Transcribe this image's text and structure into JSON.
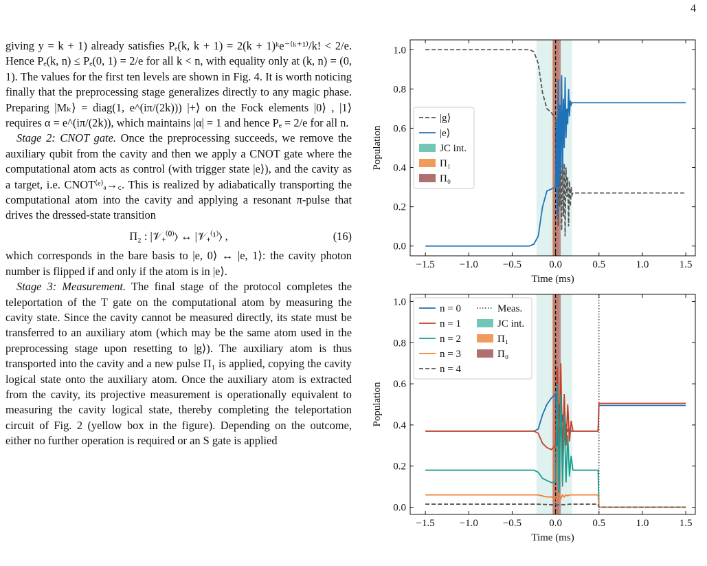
{
  "page_number": "4",
  "document": {
    "paragraphs": [
      {
        "body": "giving y = k + 1) already satisfies Pₑ(k, k + 1) = 2(k + 1)ᵏe⁻⁽ᵏ⁺¹⁾/k! < 2/e. Hence Pₑ(k, n) ≤ Pₑ(0, 1) = 2/e for all k < n, with equality only at (k, n) = (0, 1). The values for the first ten levels are shown in Fig. 4. It is worth noticing finally that the preprocessing stage generalizes directly to any magic phase. Preparing |Mₖ⟩ = diag(1, e^(iπ/(2k))) |+⟩ on the Fock elements |0⟩ , |1⟩ requires α = e^(iπ/(2k)), which maintains |α| = 1 and hence Pₑ = 2/e for all n."
      },
      {
        "lead": "Stage 2: CNOT gate.",
        "body": "Once the preprocessing succeeds, we remove the auxiliary qubit from the cavity and then we apply a CNOT gate where the computational atom acts as control (with trigger state |e⟩), and the cavity as a target, i.e. CNOT⁽ᵉ⁾ₐ→꜀. This is realized by adiabatically transporting the computational atom into the cavity and applying a resonant π-pulse that drives the dressed-state transition"
      }
    ],
    "equation": {
      "text": "Π₂ :    |𝒱₊⁽⁰⁾⟩ ↔ |𝒱₊⁽¹⁾⟩ ,",
      "number": "(16)"
    },
    "paragraphs_after": [
      {
        "body": "which corresponds in the bare basis to |e, 0⟩ ↔ |e, 1⟩: the cavity photon number is flipped if and only if the atom is in |e⟩."
      },
      {
        "lead": "Stage 3: Measurement.",
        "body": "The final stage of the protocol completes the teleportation of the T gate on the computational atom by measuring the cavity state. Since the cavity cannot be measured directly, its state must be transferred to an auxiliary atom (which may be the same atom used in the preprocessing stage upon resetting to |g⟩). The auxiliary atom is thus transported into the cavity and a new pulse Π₁ is applied, copying the cavity logical state onto the auxiliary atom. Once the auxiliary atom is extracted from the cavity, its projective measurement is operationally equivalent to measuring the cavity logical state, thereby completing the teleportation circuit of Fig. 2 (yellow box in the figure). Depending on the outcome, either no further operation is required or an S gate is applied"
      }
    ]
  },
  "chart_data": [
    {
      "type": "line",
      "xlabel": "Time (ms)",
      "ylabel": "Population",
      "xlim": [
        -1.675,
        1.61
      ],
      "ylim": [
        -0.05,
        1.05
      ],
      "xticks": [
        {
          "value": -1.5,
          "label": "−1.5"
        },
        {
          "value": -1.0,
          "label": "−1.0"
        },
        {
          "value": -0.5,
          "label": "−0.5"
        },
        {
          "value": 0,
          "label": "0.0"
        },
        0.5,
        {
          "value": 1.0,
          "label": "1.0"
        },
        1.5
      ],
      "yticks": [
        {
          "value": 0,
          "label": "0.0"
        },
        0.2,
        0.4,
        0.6,
        0.8,
        {
          "value": 1.0,
          "label": "1.0"
        }
      ],
      "legend": "center left",
      "legend_rows": 5,
      "x": [
        -1.5,
        -1.0,
        -0.5,
        -0.3,
        -0.25,
        -0.2,
        -0.15,
        -0.1,
        -0.05,
        0,
        0.01,
        0.02,
        0.03,
        0.04,
        0.05,
        0.06,
        0.07,
        0.08,
        0.09,
        0.1,
        0.11,
        0.12,
        0.13,
        0.14,
        0.15,
        0.16,
        0.17,
        0.18,
        0.19,
        0.2,
        0.25,
        1.0,
        1.5
      ],
      "series": [
        {
          "name": "|g⟩",
          "color": "#555555",
          "dash": true,
          "values": [
            1,
            1,
            1,
            1,
            0.99,
            0.93,
            0.78,
            0.7,
            0.68,
            0.65,
            0.3,
            0.6,
            0.1,
            0.55,
            0.2,
            0.45,
            0.08,
            0.5,
            0.15,
            0.42,
            0.05,
            0.4,
            0.25,
            0.35,
            0.1,
            0.33,
            0.2,
            0.3,
            0.26,
            0.27,
            0.27,
            0.27,
            0.27
          ]
        },
        {
          "name": "|e⟩",
          "color": "#1f72b8",
          "dash": false,
          "values": [
            0,
            0,
            0,
            0,
            0.01,
            0.05,
            0.2,
            0.28,
            0.29,
            0.3,
            0.65,
            0.15,
            0.85,
            0.3,
            0.72,
            0.4,
            0.87,
            0.35,
            0.75,
            0.5,
            0.86,
            0.55,
            0.7,
            0.62,
            0.8,
            0.66,
            0.74,
            0.72,
            0.73,
            0.73,
            0.73,
            0.73,
            0.73
          ]
        }
      ],
      "vlines": [
        {
          "x": 0,
          "style": "dashed"
        }
      ],
      "spans": [
        {
          "name": "JC int.",
          "color": "#72c6b8",
          "alpha": 0.22,
          "x": [
            -0.22,
            0.19
          ]
        },
        {
          "name": "Π₁",
          "color": "#f09a5c",
          "alpha": 0.7,
          "x": [
            -0.04,
            0.04
          ]
        },
        {
          "name": "Π₀",
          "color": "#b07070",
          "alpha": 0.75,
          "x": [
            -0.03,
            0.06
          ]
        }
      ]
    },
    {
      "type": "line",
      "xlabel": "Time (ms)",
      "ylabel": "Population",
      "xlim": [
        -1.675,
        1.61
      ],
      "ylim": [
        -0.035,
        1.035
      ],
      "xticks": [
        {
          "value": -1.5,
          "label": "−1.5"
        },
        {
          "value": -1.0,
          "label": "−1.0"
        },
        {
          "value": -0.5,
          "label": "−0.5"
        },
        {
          "value": 0,
          "label": "0.0"
        },
        0.5,
        {
          "value": 1.0,
          "label": "1.0"
        },
        1.5
      ],
      "yticks": [
        {
          "value": 0,
          "label": "0.0"
        },
        0.2,
        0.4,
        0.6,
        0.8,
        {
          "value": 1.0,
          "label": "1.0"
        }
      ],
      "legend": "upper left",
      "legend_rows": 5,
      "x": [
        -1.5,
        -1.0,
        -0.5,
        -0.25,
        -0.2,
        -0.15,
        -0.1,
        -0.05,
        0,
        0.02,
        0.04,
        0.06,
        0.08,
        0.1,
        0.12,
        0.14,
        0.16,
        0.18,
        0.2,
        0.25,
        0.3,
        0.49,
        0.5,
        0.51,
        1.0,
        1.5
      ],
      "series": [
        {
          "name": "n = 0",
          "color": "#1f6fb2",
          "dash": false,
          "values": [
            0.37,
            0.37,
            0.37,
            0.37,
            0.38,
            0.45,
            0.5,
            0.53,
            0.55,
            0.3,
            0.5,
            0.35,
            0.45,
            0.38,
            0.4,
            0.37,
            0.38,
            0.37,
            0.37,
            0.37,
            0.37,
            0.37,
            0.495,
            0.495,
            0.495,
            0.495
          ]
        },
        {
          "name": "n = 1",
          "color": "#c73e25",
          "dash": false,
          "values": [
            0.37,
            0.37,
            0.37,
            0.37,
            0.36,
            0.31,
            0.29,
            0.28,
            0.3,
            0.68,
            0.2,
            0.7,
            0.25,
            0.55,
            0.3,
            0.5,
            0.32,
            0.42,
            0.37,
            0.37,
            0.37,
            0.37,
            0.505,
            0.505,
            0.505,
            0.505
          ]
        },
        {
          "name": "n = 2",
          "color": "#1a9e8f",
          "dash": false,
          "values": [
            0.18,
            0.18,
            0.18,
            0.18,
            0.17,
            0.14,
            0.13,
            0.12,
            0.12,
            0.6,
            0.05,
            0.55,
            0.1,
            0.45,
            0.12,
            0.35,
            0.15,
            0.25,
            0.18,
            0.18,
            0.18,
            0.18,
            0,
            0,
            0,
            0
          ]
        },
        {
          "name": "n = 3",
          "color": "#f08030",
          "dash": false,
          "values": [
            0.06,
            0.06,
            0.06,
            0.06,
            0.06,
            0.055,
            0.05,
            0.05,
            0.04,
            0.03,
            0.07,
            0.04,
            0.06,
            0.05,
            0.06,
            0.055,
            0.06,
            0.06,
            0.06,
            0.06,
            0.06,
            0.06,
            0,
            0,
            0,
            0
          ]
        },
        {
          "name": "n = 4",
          "color": "#555555",
          "dash": true,
          "values": [
            0.015,
            0.015,
            0.015,
            0.015,
            0.015,
            0.014,
            0.013,
            0.012,
            0.012,
            0.01,
            0.012,
            0.01,
            0.013,
            0.012,
            0.014,
            0.014,
            0.015,
            0.015,
            0.015,
            0.015,
            0.015,
            0.015,
            0,
            0,
            0,
            0
          ]
        }
      ],
      "vlines": [
        {
          "x": 0,
          "style": "dashed"
        },
        {
          "x": 0.5,
          "style": "dotted",
          "name": "Meas."
        }
      ],
      "spans": [
        {
          "name": "JC int.",
          "color": "#72c6b8",
          "alpha": 0.22,
          "x": [
            -0.22,
            0.19
          ]
        },
        {
          "name": "Π₁",
          "color": "#f09a5c",
          "alpha": 0.7,
          "x": [
            -0.04,
            0.04
          ]
        },
        {
          "name": "Π₀",
          "color": "#b07070",
          "alpha": 0.75,
          "x": [
            -0.03,
            0.06
          ]
        }
      ]
    }
  ]
}
